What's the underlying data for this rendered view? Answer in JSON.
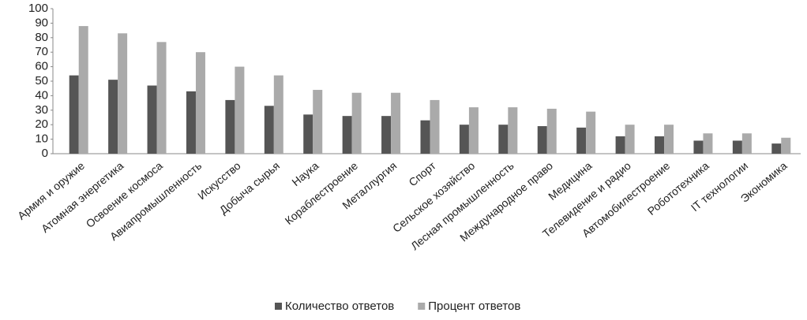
{
  "chart_data": {
    "type": "bar",
    "categories": [
      "Армия и оружие",
      "Атомная энергетика",
      "Освоение космоса",
      "Авиапромышленность",
      "Искусство",
      "Добыча сырья",
      "Наука",
      "Кораблестроение",
      "Металлургия",
      "Спорт",
      "Сельское хозяйство",
      "Лесная промышленность",
      "Международное право",
      "Медицина",
      "Телевидение и радио",
      "Автомобилестроение",
      "Робототехника",
      "IT технологии",
      "Экономика"
    ],
    "series": [
      {
        "name": "Количество ответов",
        "color": "#555555",
        "values": [
          54,
          51,
          47,
          43,
          37,
          33,
          27,
          26,
          26,
          23,
          20,
          20,
          19,
          18,
          12,
          12,
          9,
          9,
          7
        ]
      },
      {
        "name": "Процент ответов",
        "color": "#aaaaaa",
        "values": [
          88,
          83,
          77,
          70,
          60,
          54,
          44,
          42,
          42,
          37,
          32,
          32,
          31,
          29,
          20,
          20,
          14,
          14,
          11
        ]
      }
    ],
    "ylim": [
      0,
      100
    ],
    "yticks": [
      0,
      10,
      20,
      30,
      40,
      50,
      60,
      70,
      80,
      90,
      100
    ],
    "grid": false,
    "legend": "bottom"
  }
}
